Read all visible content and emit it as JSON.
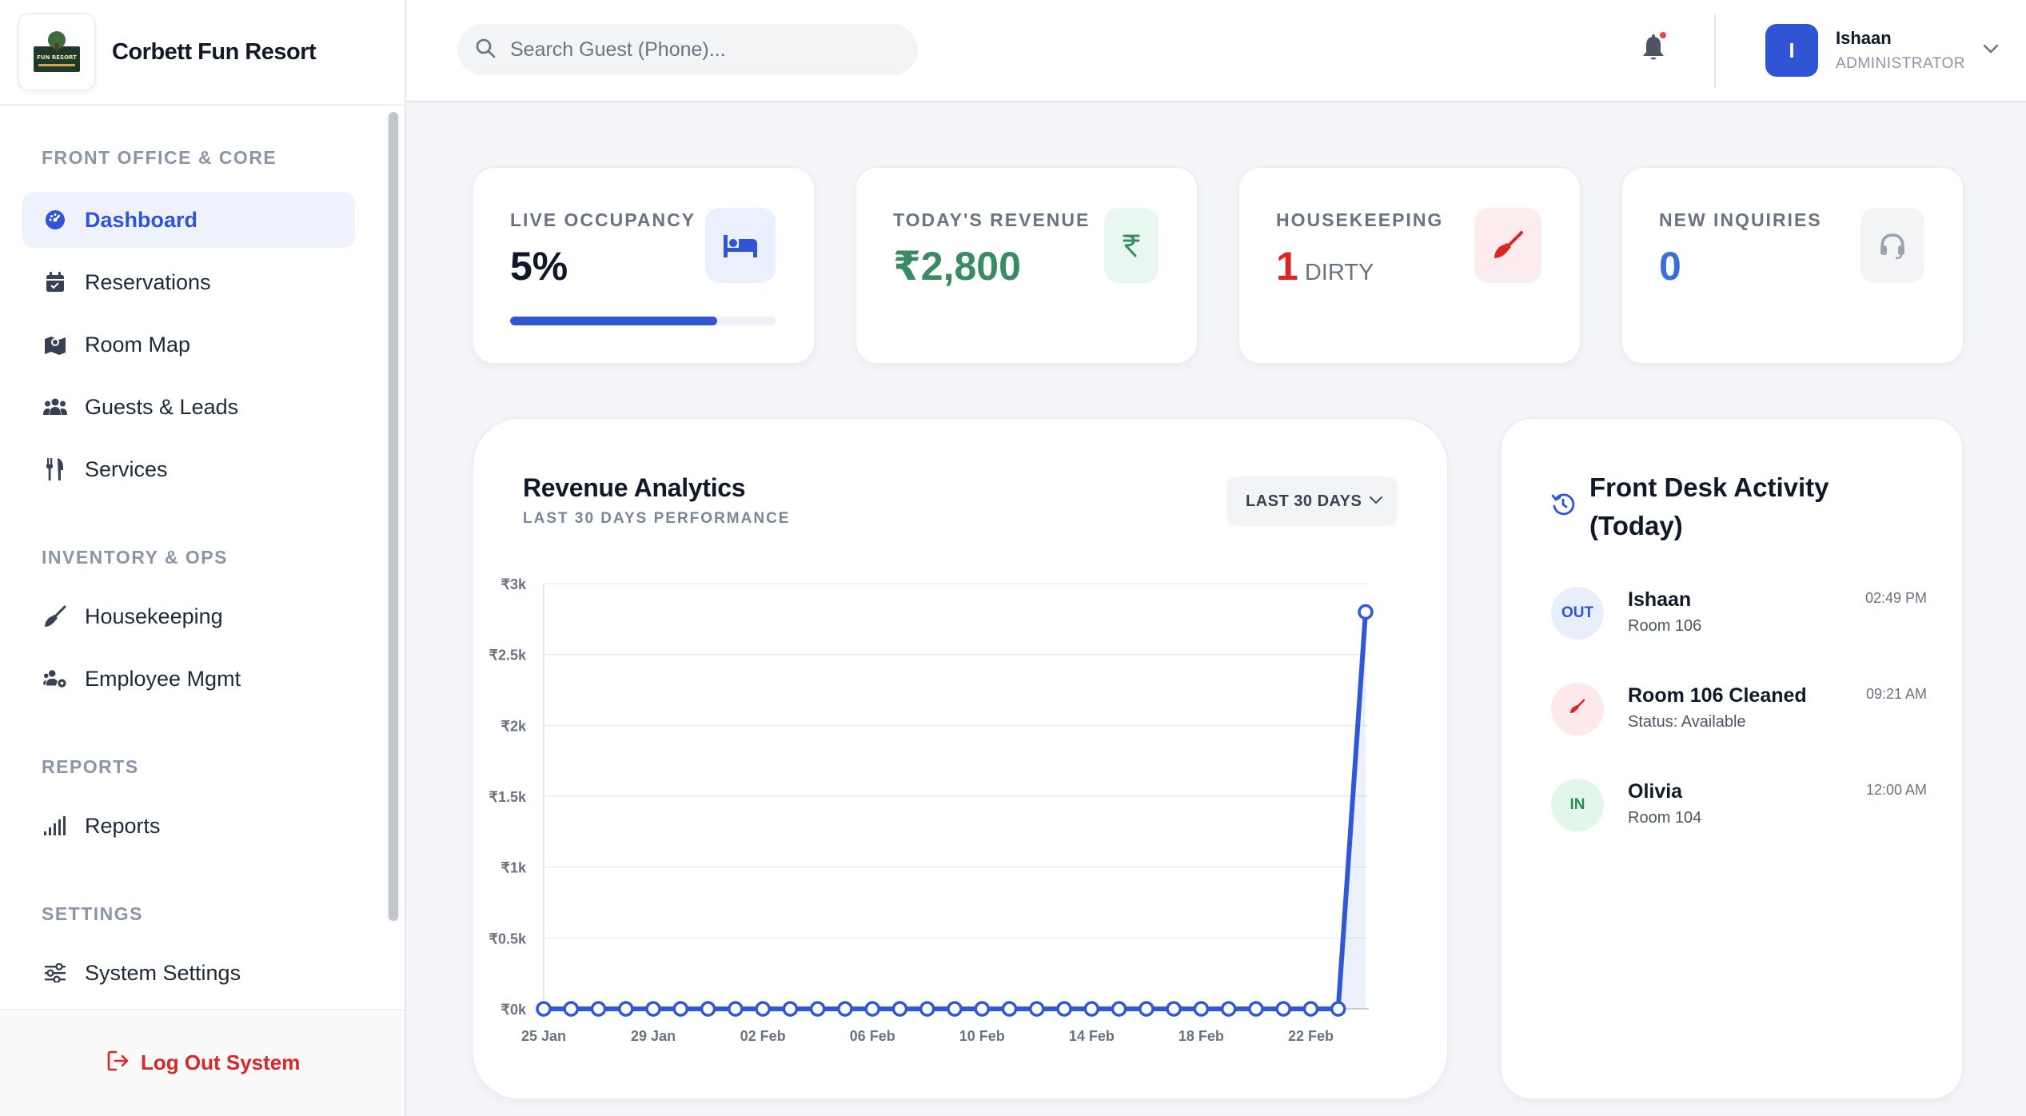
{
  "brand": {
    "title": "Corbett Fun Resort",
    "logo_text": "FUN RESORT"
  },
  "sidebar": {
    "sections": [
      {
        "title": "FRONT OFFICE & CORE"
      },
      {
        "title": "INVENTORY & OPS"
      },
      {
        "title": "REPORTS"
      },
      {
        "title": "SETTINGS"
      }
    ],
    "items": [
      {
        "label": "Dashboard",
        "icon": "gauge-icon"
      },
      {
        "label": "Reservations",
        "icon": "calendar-icon"
      },
      {
        "label": "Room Map",
        "icon": "map-icon"
      },
      {
        "label": "Guests & Leads",
        "icon": "users-icon"
      },
      {
        "label": "Services",
        "icon": "utensils-icon"
      },
      {
        "label": "Housekeeping",
        "icon": "broom-icon"
      },
      {
        "label": "Employee Mgmt",
        "icon": "users-gear-icon"
      },
      {
        "label": "Reports",
        "icon": "signal-bars-icon"
      },
      {
        "label": "System Settings",
        "icon": "sliders-icon"
      }
    ],
    "logout_label": "Log Out System"
  },
  "header": {
    "search_placeholder": "Search Guest (Phone)...",
    "user": {
      "initial": "I",
      "name": "Ishaan",
      "role": "ADMINISTRATOR"
    }
  },
  "stats": {
    "occupancy": {
      "label": "LIVE OCCUPANCY",
      "value": "5%",
      "progress_fraction": 0.78,
      "accent": "#2f55d4"
    },
    "revenue": {
      "label": "TODAY'S REVENUE",
      "value": "₹2,800",
      "accent": "#3a8a64"
    },
    "housekeeping": {
      "label": "HOUSEKEEPING",
      "count": "1",
      "unit": "DIRTY",
      "accent": "#dc2626"
    },
    "inquiries": {
      "label": "NEW INQUIRIES",
      "value": "0",
      "accent": "#3b6fd8"
    }
  },
  "analytics": {
    "title": "Revenue Analytics",
    "subtitle": "LAST 30 DAYS PERFORMANCE",
    "range_label": "LAST 30 DAYS"
  },
  "chart_data": {
    "type": "line",
    "title": "Revenue Analytics",
    "xlabel": "",
    "ylabel": "",
    "ylim": [
      0,
      3000
    ],
    "yticks": [
      0,
      500,
      1000,
      1500,
      2000,
      2500,
      3000
    ],
    "ytick_labels": [
      "₹0k",
      "₹0.5k",
      "₹1k",
      "₹1.5k",
      "₹2k",
      "₹2.5k",
      "₹3k"
    ],
    "xtick_labels": [
      "25 Jan",
      "29 Jan",
      "02 Feb",
      "06 Feb",
      "10 Feb",
      "14 Feb",
      "18 Feb",
      "22 Feb"
    ],
    "xtick_every": 2,
    "series": [
      {
        "name": "Revenue",
        "color": "#3057d5",
        "values": [
          0,
          0,
          0,
          0,
          0,
          0,
          0,
          0,
          0,
          0,
          0,
          0,
          0,
          0,
          0,
          0,
          0,
          0,
          0,
          0,
          0,
          0,
          0,
          0,
          0,
          0,
          0,
          0,
          0,
          0,
          2800
        ]
      }
    ]
  },
  "activity": {
    "title": "Front Desk Activity (Today)",
    "items": [
      {
        "badge": "OUT",
        "name": "Ishaan",
        "detail": "Room 106",
        "time": "02:49 PM",
        "badge_bg": "#e8eefc",
        "badge_fg": "#2f55d4"
      },
      {
        "badge": "",
        "name": "Room 106 Cleaned",
        "detail": "Status: Available",
        "time": "09:21 AM",
        "badge_bg": "#fde8ea",
        "badge_fg": "#dc2626"
      },
      {
        "badge": "IN",
        "name": "Olivia",
        "detail": "Room 104",
        "time": "12:00 AM",
        "badge_bg": "#e3f6ea",
        "badge_fg": "#2f8a57"
      }
    ]
  }
}
